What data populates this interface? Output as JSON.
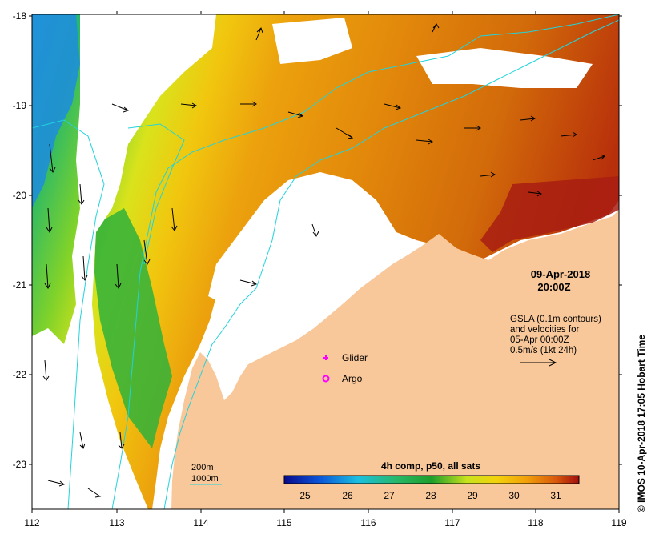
{
  "map": {
    "lat_ticks": [
      "-18",
      "-19",
      "-20",
      "-21",
      "-22",
      "-23"
    ],
    "lon_ticks": [
      "112",
      "113",
      "114",
      "115",
      "116",
      "117",
      "118",
      "119"
    ],
    "date": "09-Apr-2018",
    "time": "20:00Z",
    "gsla_lines": [
      "GSLA (0.1m contours)",
      "and velocities for",
      "05-Apr 00:00Z",
      "0.5m/s (1kt 24h)"
    ],
    "glider_label": "Glider",
    "argo_label": "Argo",
    "depth_200": "200m",
    "depth_1000": "1000m",
    "colorbar_title": "4h comp, p50, all sats",
    "colorbar_ticks": [
      "25",
      "26",
      "27",
      "28",
      "29",
      "30",
      "31"
    ],
    "copyright": "© IMOS 10-Apr-2018 17:05 Hobart Time",
    "colors": {
      "land": "#f9c89a",
      "bathy": "#22d3dd",
      "glider": "#ff00ff",
      "argo": "#ff00ff"
    }
  }
}
